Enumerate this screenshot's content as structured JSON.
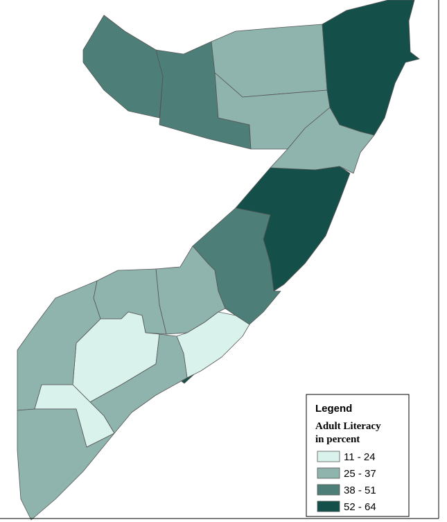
{
  "legend": {
    "title": "Legend",
    "subtitle_lines": [
      "Adult Literacy",
      "in percent"
    ],
    "items": [
      {
        "label": "11 - 24",
        "color": "#d9f2ec"
      },
      {
        "label": "25 - 37",
        "color": "#8fb3ad"
      },
      {
        "label": "38 - 51",
        "color": "#4d7e78"
      },
      {
        "label": "52 - 64",
        "color": "#154f4a"
      }
    ]
  }
}
